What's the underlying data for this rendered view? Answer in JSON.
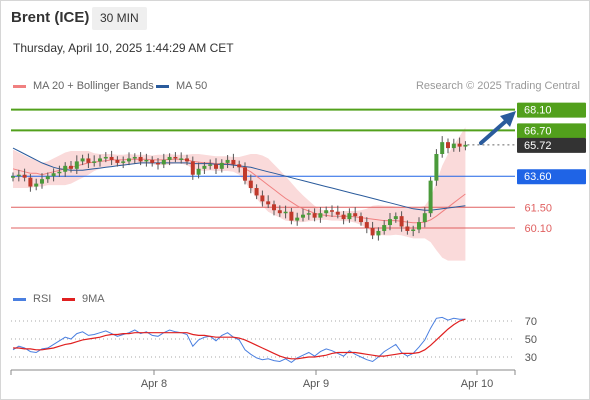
{
  "header": {
    "instrument": "Brent (ICE)",
    "timeframe": "30 MIN",
    "timestamp": "Thursday, April 10, 2025 1:44:29 AM CET"
  },
  "legend": {
    "ma20": {
      "label": "MA 20 + Bollinger Bands",
      "color": "#f08080"
    },
    "ma50": {
      "label": "MA 50",
      "color": "#2a5b9c"
    },
    "credit": "Research © 2025 Trading Central"
  },
  "rsi_legend": {
    "rsi": {
      "label": "RSI",
      "color": "#4a7fe0"
    },
    "ma": {
      "label": "9MA",
      "color": "#e02020"
    }
  },
  "colors": {
    "resistance": "#52a01c",
    "support": "#e06060",
    "pivot": "#1f64e6",
    "current": "#333333",
    "up": "#4a9a3a",
    "down": "#c0392b",
    "band": "#fadada",
    "arrow": "#2a5b9c"
  },
  "chart_data": [
    {
      "type": "candlestick",
      "x_labels": [
        "Apr 8",
        "Apr 9",
        "Apr 10"
      ],
      "levels": [
        {
          "value": "68.10",
          "kind": "resistance"
        },
        {
          "value": "66.70",
          "kind": "resistance"
        },
        {
          "value": "65.72",
          "kind": "current"
        },
        {
          "value": "63.60",
          "kind": "pivot"
        },
        {
          "value": "61.50",
          "kind": "support"
        },
        {
          "value": "60.10",
          "kind": "support"
        }
      ],
      "price_series": [
        63.6,
        63.7,
        63.5,
        62.9,
        63.1,
        63.4,
        63.6,
        63.8,
        63.9,
        64.3,
        64.1,
        64.6,
        64.8,
        64.5,
        64.6,
        64.8,
        64.9,
        64.7,
        64.5,
        64.6,
        64.8,
        64.9,
        64.6,
        64.7,
        64.5,
        64.4,
        64.7,
        64.9,
        64.8,
        64.8,
        64.6,
        63.7,
        64.1,
        64.3,
        64.4,
        64.1,
        64.5,
        64.7,
        64.4,
        64.2,
        63.3,
        62.8,
        62.3,
        61.9,
        61.7,
        61.3,
        61.1,
        61.2,
        60.6,
        60.8,
        61.0,
        61.1,
        60.8,
        61.1,
        61.3,
        61.2,
        61.0,
        60.7,
        61.1,
        60.9,
        60.5,
        60.1,
        59.6,
        59.9,
        60.3,
        60.7,
        60.9,
        60.2,
        59.9,
        60.0,
        60.5,
        61.1,
        63.3,
        65.1,
        65.9,
        65.5,
        65.8,
        65.6,
        65.72
      ],
      "ma20": [
        64.1,
        64.0,
        63.9,
        63.8,
        63.8,
        63.7,
        63.8,
        63.9,
        64.0,
        64.1,
        64.2,
        64.3,
        64.4,
        64.5,
        64.55,
        64.6,
        64.65,
        64.7,
        64.7,
        64.7,
        64.75,
        64.75,
        64.75,
        64.75,
        64.7,
        64.7,
        64.7,
        64.75,
        64.75,
        64.75,
        64.7,
        64.6,
        64.55,
        64.5,
        64.5,
        64.45,
        64.45,
        64.45,
        64.4,
        64.3,
        64.1,
        63.9,
        63.6,
        63.3,
        63.0,
        62.7,
        62.4,
        62.1,
        61.85,
        61.6,
        61.4,
        61.25,
        61.1,
        61.0,
        60.95,
        60.9,
        60.9,
        60.9,
        60.9,
        60.85,
        60.8,
        60.75,
        60.7,
        60.65,
        60.6,
        60.6,
        60.6,
        60.55,
        60.5,
        60.45,
        60.45,
        60.5,
        60.65,
        60.9,
        61.2,
        61.5,
        61.8,
        62.1,
        62.4
      ],
      "ma50": [
        65.5,
        65.3,
        65.1,
        64.9,
        64.7,
        64.5,
        64.35,
        64.2,
        64.1,
        64.05,
        64.0,
        64.0,
        64.0,
        64.05,
        64.1,
        64.15,
        64.2,
        64.25,
        64.3,
        64.35,
        64.4,
        64.45,
        64.5,
        64.5,
        64.5,
        64.5,
        64.5,
        64.5,
        64.5,
        64.5,
        64.5,
        64.45,
        64.45,
        64.45,
        64.45,
        64.4,
        64.4,
        64.4,
        64.35,
        64.3,
        64.25,
        64.2,
        64.1,
        64.0,
        63.9,
        63.8,
        63.7,
        63.6,
        63.5,
        63.4,
        63.3,
        63.2,
        63.1,
        63.0,
        62.9,
        62.8,
        62.7,
        62.6,
        62.5,
        62.4,
        62.3,
        62.2,
        62.1,
        62.0,
        61.9,
        61.8,
        61.7,
        61.6,
        61.5,
        61.4,
        61.35,
        61.3,
        61.3,
        61.35,
        61.4,
        61.45,
        61.5,
        61.55,
        61.6
      ],
      "bb_halfwidth": [
        1.3,
        1.2,
        1.1,
        1.0,
        0.9,
        0.8,
        0.8,
        0.9,
        1.0,
        1.1,
        1.1,
        1.0,
        0.9,
        0.8,
        0.6,
        0.5,
        0.45,
        0.4,
        0.35,
        0.35,
        0.35,
        0.3,
        0.3,
        0.3,
        0.3,
        0.35,
        0.35,
        0.35,
        0.3,
        0.3,
        0.35,
        0.5,
        0.55,
        0.55,
        0.5,
        0.5,
        0.5,
        0.5,
        0.5,
        0.6,
        0.9,
        1.2,
        1.5,
        1.7,
        1.8,
        1.7,
        1.6,
        1.5,
        1.3,
        1.1,
        0.9,
        0.7,
        0.5,
        0.35,
        0.3,
        0.3,
        0.3,
        0.35,
        0.35,
        0.4,
        0.5,
        0.65,
        0.9,
        1.0,
        1.0,
        1.0,
        0.95,
        0.95,
        1.0,
        1.05,
        1.05,
        1.1,
        1.5,
        2.3,
        3.1,
        3.6,
        3.9,
        4.2,
        4.5
      ],
      "rsi_ticks": [
        "70",
        "50",
        "30"
      ],
      "rsi_series": [
        38,
        42,
        40,
        36,
        35,
        39,
        40,
        44,
        48,
        52,
        50,
        56,
        58,
        54,
        55,
        57,
        59,
        56,
        53,
        55,
        57,
        60,
        56,
        58,
        54,
        53,
        57,
        60,
        58,
        57,
        55,
        42,
        49,
        52,
        53,
        48,
        54,
        57,
        52,
        49,
        38,
        33,
        29,
        27,
        28,
        26,
        25,
        28,
        24,
        29,
        32,
        35,
        31,
        36,
        39,
        37,
        34,
        31,
        37,
        33,
        30,
        27,
        25,
        30,
        36,
        40,
        44,
        35,
        31,
        34,
        41,
        49,
        62,
        73,
        74,
        71,
        73,
        72,
        72
      ],
      "rsi_ma": [
        40,
        40,
        39,
        39,
        38,
        38,
        39,
        40,
        42,
        44,
        45,
        47,
        49,
        50,
        51,
        52,
        54,
        55,
        55,
        56,
        56,
        57,
        57,
        57,
        57,
        57,
        57,
        57,
        57,
        57,
        57,
        55,
        54,
        54,
        53,
        52,
        52,
        52,
        52,
        51,
        49,
        46,
        43,
        40,
        37,
        34,
        31,
        29,
        28,
        28,
        29,
        30,
        30,
        31,
        32,
        34,
        35,
        35,
        35,
        35,
        34,
        33,
        32,
        31,
        31,
        32,
        33,
        34,
        34,
        34,
        35,
        38,
        43,
        49,
        55,
        61,
        66,
        70,
        72
      ]
    }
  ]
}
